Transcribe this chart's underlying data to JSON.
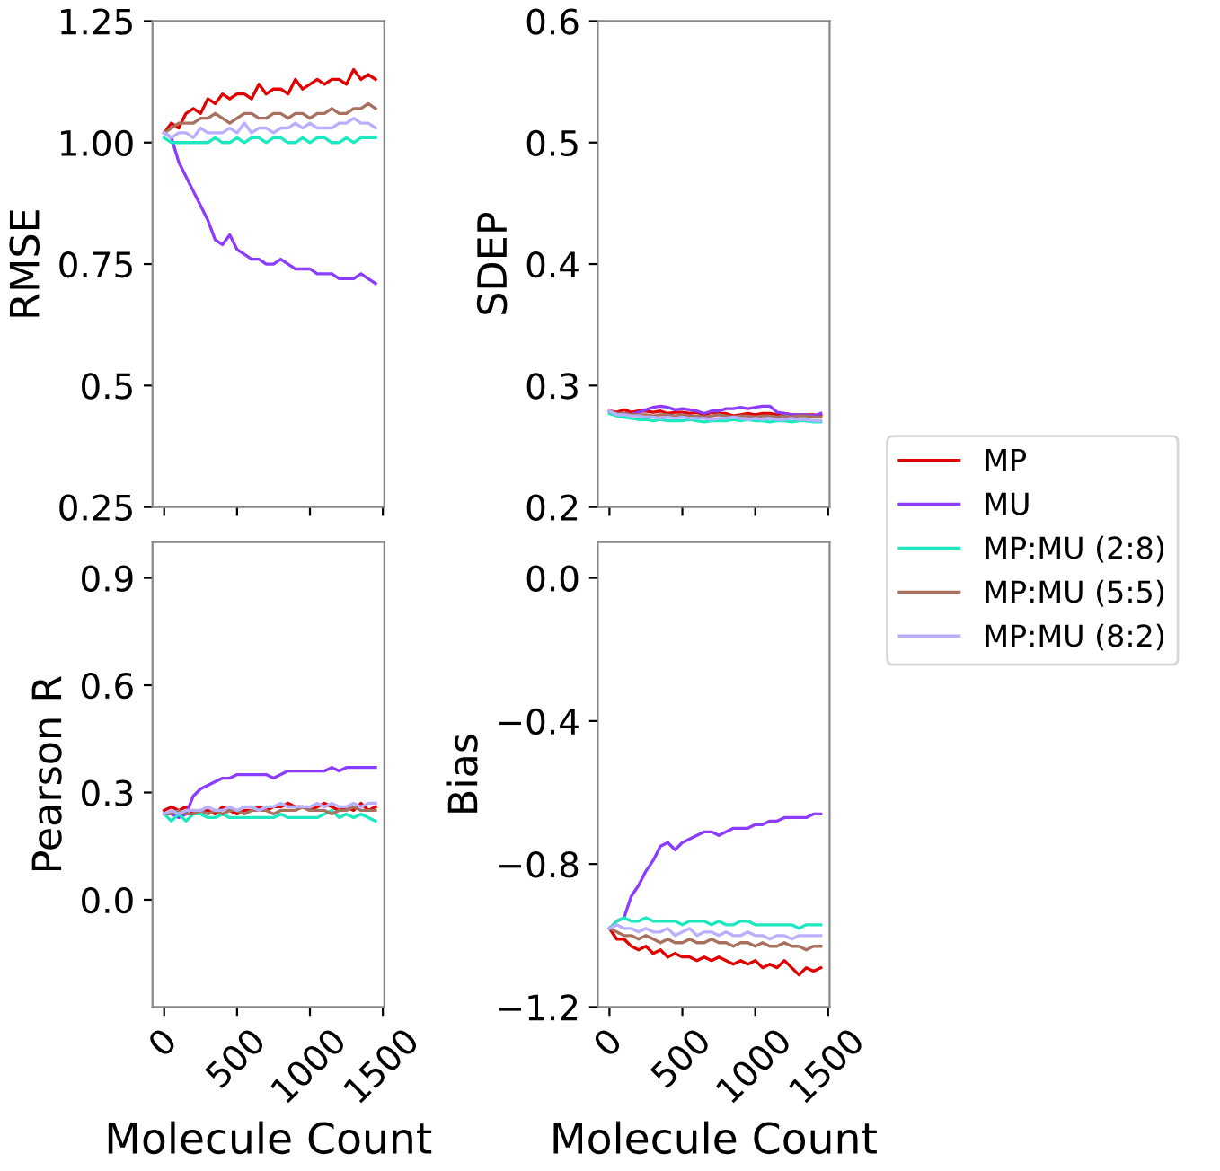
{
  "chart_data": [
    {
      "type": "line",
      "ylabel": "RMSE",
      "x": [
        0,
        50,
        100,
        150,
        200,
        250,
        300,
        350,
        400,
        450,
        500,
        550,
        600,
        650,
        700,
        750,
        800,
        850,
        900,
        950,
        1000,
        1050,
        1100,
        1150,
        1200,
        1250,
        1300,
        1350,
        1400,
        1450
      ],
      "xlim": [
        -80,
        1510
      ],
      "xticks": [
        0,
        500,
        1000,
        1500
      ],
      "ylim": [
        0.25,
        1.25
      ],
      "yticks": [
        0.25,
        0.5,
        0.75,
        {
          "value": 1.0,
          "label": "1.00"
        },
        1.25
      ],
      "tick_labels": "y",
      "grid": false,
      "series": [
        {
          "color": "#e00000",
          "values": [
            1.02,
            1.04,
            1.03,
            1.06,
            1.07,
            1.06,
            1.09,
            1.08,
            1.1,
            1.09,
            1.1,
            1.1,
            1.09,
            1.12,
            1.1,
            1.11,
            1.11,
            1.1,
            1.13,
            1.11,
            1.12,
            1.13,
            1.12,
            1.13,
            1.13,
            1.12,
            1.15,
            1.13,
            1.14,
            1.13
          ]
        },
        {
          "color": "#8c3cff",
          "values": [
            1.02,
            1.01,
            0.96,
            0.93,
            0.9,
            0.87,
            0.84,
            0.8,
            0.79,
            0.81,
            0.78,
            0.77,
            0.76,
            0.76,
            0.75,
            0.75,
            0.76,
            0.75,
            0.74,
            0.74,
            0.74,
            0.73,
            0.73,
            0.73,
            0.72,
            0.72,
            0.72,
            0.73,
            0.72,
            0.71
          ]
        },
        {
          "color": "#1de9c0",
          "values": [
            1.01,
            1.0,
            1.0,
            1.0,
            1.0,
            1.0,
            1.0,
            1.01,
            1.0,
            1.0,
            1.01,
            1.0,
            1.01,
            1.01,
            1.0,
            1.01,
            1.01,
            1.0,
            1.0,
            1.01,
            1.0,
            1.01,
            1.01,
            1.0,
            1.0,
            1.01,
            1.0,
            1.01,
            1.01,
            1.01
          ]
        },
        {
          "color": "#a8705f",
          "values": [
            1.02,
            1.03,
            1.04,
            1.04,
            1.04,
            1.05,
            1.05,
            1.06,
            1.05,
            1.04,
            1.05,
            1.06,
            1.06,
            1.05,
            1.05,
            1.06,
            1.06,
            1.05,
            1.06,
            1.06,
            1.05,
            1.06,
            1.06,
            1.07,
            1.06,
            1.06,
            1.07,
            1.07,
            1.08,
            1.07
          ]
        },
        {
          "color": "#b8b0ff",
          "values": [
            1.02,
            1.01,
            1.02,
            1.02,
            1.01,
            1.03,
            1.02,
            1.02,
            1.02,
            1.03,
            1.02,
            1.04,
            1.02,
            1.03,
            1.03,
            1.02,
            1.03,
            1.03,
            1.04,
            1.03,
            1.04,
            1.03,
            1.03,
            1.03,
            1.04,
            1.04,
            1.05,
            1.04,
            1.04,
            1.03
          ]
        }
      ]
    },
    {
      "type": "line",
      "ylabel": "SDEP",
      "x": [
        0,
        50,
        100,
        150,
        200,
        250,
        300,
        350,
        400,
        450,
        500,
        550,
        600,
        650,
        700,
        750,
        800,
        850,
        900,
        950,
        1000,
        1050,
        1100,
        1150,
        1200,
        1250,
        1300,
        1350,
        1400,
        1450
      ],
      "xlim": [
        -80,
        1510
      ],
      "xticks": [
        0,
        500,
        1000,
        1500
      ],
      "ylim": [
        0.2,
        0.6
      ],
      "yticks": [
        0.2,
        0.3,
        0.4,
        0.5,
        0.6
      ],
      "tick_labels": "y",
      "grid": false,
      "series": [
        {
          "color": "#e00000",
          "values": [
            0.279,
            0.278,
            0.28,
            0.278,
            0.279,
            0.279,
            0.278,
            0.279,
            0.277,
            0.278,
            0.278,
            0.277,
            0.278,
            0.276,
            0.278,
            0.277,
            0.277,
            0.275,
            0.276,
            0.277,
            0.276,
            0.277,
            0.277,
            0.276,
            0.277,
            0.276,
            0.276,
            0.276,
            0.276,
            0.275
          ]
        },
        {
          "color": "#8c3cff",
          "values": [
            0.279,
            0.276,
            0.277,
            0.276,
            0.278,
            0.28,
            0.282,
            0.283,
            0.282,
            0.28,
            0.281,
            0.28,
            0.279,
            0.277,
            0.279,
            0.279,
            0.281,
            0.281,
            0.282,
            0.281,
            0.282,
            0.283,
            0.283,
            0.278,
            0.277,
            0.276,
            0.276,
            0.276,
            0.275,
            0.277
          ]
        },
        {
          "color": "#1de9c0",
          "values": [
            0.277,
            0.275,
            0.274,
            0.273,
            0.272,
            0.272,
            0.271,
            0.272,
            0.271,
            0.271,
            0.271,
            0.272,
            0.271,
            0.27,
            0.271,
            0.271,
            0.271,
            0.272,
            0.271,
            0.272,
            0.271,
            0.271,
            0.27,
            0.271,
            0.271,
            0.27,
            0.271,
            0.271,
            0.27,
            0.27
          ]
        },
        {
          "color": "#a8705f",
          "values": [
            0.279,
            0.277,
            0.277,
            0.276,
            0.276,
            0.276,
            0.275,
            0.276,
            0.276,
            0.275,
            0.276,
            0.275,
            0.275,
            0.274,
            0.275,
            0.276,
            0.275,
            0.274,
            0.275,
            0.275,
            0.274,
            0.275,
            0.275,
            0.274,
            0.275,
            0.274,
            0.275,
            0.275,
            0.274,
            0.274
          ]
        },
        {
          "color": "#b8b0ff",
          "values": [
            0.279,
            0.276,
            0.276,
            0.275,
            0.275,
            0.274,
            0.274,
            0.273,
            0.274,
            0.273,
            0.274,
            0.273,
            0.273,
            0.273,
            0.272,
            0.273,
            0.273,
            0.274,
            0.273,
            0.272,
            0.273,
            0.272,
            0.273,
            0.272,
            0.272,
            0.273,
            0.272,
            0.272,
            0.271,
            0.271
          ]
        }
      ]
    },
    {
      "type": "line",
      "xlabel": "Molecule Count",
      "ylabel": "Pearson R",
      "x": [
        0,
        50,
        100,
        150,
        200,
        250,
        300,
        350,
        400,
        450,
        500,
        550,
        600,
        650,
        700,
        750,
        800,
        850,
        900,
        950,
        1000,
        1050,
        1100,
        1150,
        1200,
        1250,
        1300,
        1350,
        1400,
        1450
      ],
      "xlim": [
        -80,
        1510
      ],
      "xticks": [
        0,
        500,
        1000,
        1500
      ],
      "ylim": [
        -0.3,
        1.0
      ],
      "yticks": [
        {
          "value": 0.0,
          "label": "0.0"
        },
        0.3,
        0.6,
        0.9
      ],
      "grid": false,
      "series": [
        {
          "color": "#e00000",
          "values": [
            0.25,
            0.26,
            0.25,
            0.26,
            0.24,
            0.25,
            0.25,
            0.24,
            0.26,
            0.25,
            0.24,
            0.25,
            0.25,
            0.26,
            0.25,
            0.26,
            0.26,
            0.27,
            0.26,
            0.26,
            0.25,
            0.26,
            0.27,
            0.26,
            0.25,
            0.26,
            0.25,
            0.27,
            0.25,
            0.26
          ]
        },
        {
          "color": "#8c3cff",
          "values": [
            0.24,
            0.24,
            0.23,
            0.24,
            0.29,
            0.31,
            0.32,
            0.33,
            0.34,
            0.34,
            0.35,
            0.35,
            0.35,
            0.35,
            0.35,
            0.34,
            0.35,
            0.36,
            0.36,
            0.36,
            0.36,
            0.36,
            0.36,
            0.37,
            0.36,
            0.37,
            0.37,
            0.37,
            0.37,
            0.37
          ]
        },
        {
          "color": "#1de9c0",
          "values": [
            0.24,
            0.22,
            0.24,
            0.22,
            0.24,
            0.24,
            0.23,
            0.23,
            0.24,
            0.23,
            0.23,
            0.23,
            0.23,
            0.23,
            0.23,
            0.23,
            0.24,
            0.23,
            0.23,
            0.23,
            0.23,
            0.23,
            0.24,
            0.25,
            0.23,
            0.24,
            0.23,
            0.24,
            0.23,
            0.22
          ]
        },
        {
          "color": "#a8705f",
          "values": [
            0.24,
            0.24,
            0.25,
            0.24,
            0.24,
            0.25,
            0.24,
            0.25,
            0.24,
            0.25,
            0.25,
            0.24,
            0.25,
            0.25,
            0.25,
            0.24,
            0.25,
            0.25,
            0.25,
            0.26,
            0.25,
            0.25,
            0.25,
            0.24,
            0.25,
            0.25,
            0.26,
            0.25,
            0.25,
            0.25
          ]
        },
        {
          "color": "#b8b0ff",
          "values": [
            0.24,
            0.25,
            0.24,
            0.25,
            0.25,
            0.25,
            0.26,
            0.25,
            0.25,
            0.26,
            0.25,
            0.26,
            0.26,
            0.25,
            0.26,
            0.26,
            0.27,
            0.26,
            0.26,
            0.26,
            0.26,
            0.27,
            0.26,
            0.27,
            0.26,
            0.26,
            0.27,
            0.26,
            0.27,
            0.27
          ]
        }
      ]
    },
    {
      "type": "line",
      "xlabel": "Molecule Count",
      "ylabel": "Bias",
      "x": [
        0,
        50,
        100,
        150,
        200,
        250,
        300,
        350,
        400,
        450,
        500,
        550,
        600,
        650,
        700,
        750,
        800,
        850,
        900,
        950,
        1000,
        1050,
        1100,
        1150,
        1200,
        1250,
        1300,
        1350,
        1400,
        1450
      ],
      "xlim": [
        -80,
        1510
      ],
      "xticks": [
        0,
        500,
        1000,
        1500
      ],
      "ylim": [
        -1.2,
        0.1
      ],
      "yticks": [
        {
          "value": -1.2,
          "label": "−1.2"
        },
        {
          "value": -0.8,
          "label": "−0.8"
        },
        {
          "value": -0.4,
          "label": "−0.4"
        },
        {
          "value": 0.0,
          "label": "0.0"
        }
      ],
      "grid": false,
      "legend": "right",
      "series": [
        {
          "name": "MP",
          "color": "#e00000",
          "values": [
            -0.98,
            -1.01,
            -1.01,
            -1.03,
            -1.04,
            -1.03,
            -1.05,
            -1.04,
            -1.06,
            -1.05,
            -1.06,
            -1.06,
            -1.07,
            -1.06,
            -1.07,
            -1.06,
            -1.07,
            -1.08,
            -1.07,
            -1.08,
            -1.07,
            -1.09,
            -1.08,
            -1.09,
            -1.07,
            -1.09,
            -1.11,
            -1.09,
            -1.1,
            -1.09
          ]
        },
        {
          "name": "MU",
          "color": "#8c3cff",
          "values": [
            -0.98,
            -0.96,
            -0.95,
            -0.89,
            -0.86,
            -0.82,
            -0.79,
            -0.75,
            -0.74,
            -0.76,
            -0.74,
            -0.73,
            -0.72,
            -0.71,
            -0.71,
            -0.72,
            -0.71,
            -0.7,
            -0.7,
            -0.7,
            -0.69,
            -0.69,
            -0.68,
            -0.68,
            -0.67,
            -0.67,
            -0.67,
            -0.67,
            -0.66,
            -0.66
          ]
        },
        {
          "name": "MP:MU (2:8)",
          "color": "#1de9c0",
          "values": [
            -0.98,
            -0.96,
            -0.95,
            -0.96,
            -0.96,
            -0.95,
            -0.96,
            -0.96,
            -0.96,
            -0.96,
            -0.97,
            -0.96,
            -0.96,
            -0.96,
            -0.97,
            -0.96,
            -0.97,
            -0.97,
            -0.96,
            -0.96,
            -0.97,
            -0.97,
            -0.97,
            -0.97,
            -0.97,
            -0.97,
            -0.98,
            -0.97,
            -0.97,
            -0.97
          ]
        },
        {
          "name": "MP:MU (5:5)",
          "color": "#a8705f",
          "values": [
            -0.98,
            -0.99,
            -1.0,
            -1.0,
            -1.01,
            -1.0,
            -1.01,
            -1.02,
            -1.01,
            -1.02,
            -1.02,
            -1.01,
            -1.02,
            -1.02,
            -1.01,
            -1.02,
            -1.02,
            -1.03,
            -1.02,
            -1.02,
            -1.03,
            -1.02,
            -1.03,
            -1.03,
            -1.02,
            -1.03,
            -1.03,
            -1.04,
            -1.03,
            -1.03
          ]
        },
        {
          "name": "MP:MU (8:2)",
          "color": "#b8b0ff",
          "values": [
            -0.98,
            -0.97,
            -0.98,
            -0.98,
            -0.99,
            -0.98,
            -0.99,
            -0.99,
            -0.98,
            -1.0,
            -0.99,
            -0.98,
            -1.0,
            -0.99,
            -0.99,
            -1.0,
            -0.99,
            -1.0,
            -1.0,
            -0.99,
            -1.0,
            -1.0,
            -1.01,
            -1.0,
            -1.0,
            -1.01,
            -1.0,
            -1.0,
            -1.0,
            -1.0
          ]
        }
      ]
    }
  ]
}
